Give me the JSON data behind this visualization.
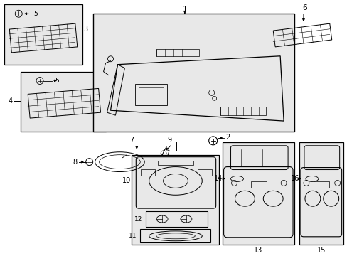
{
  "bg_color": "#ffffff",
  "lc": "#000000",
  "gray_fill": "#e8e8e8",
  "white": "#ffffff",
  "fig_w": 4.89,
  "fig_h": 3.6,
  "dpi": 100
}
